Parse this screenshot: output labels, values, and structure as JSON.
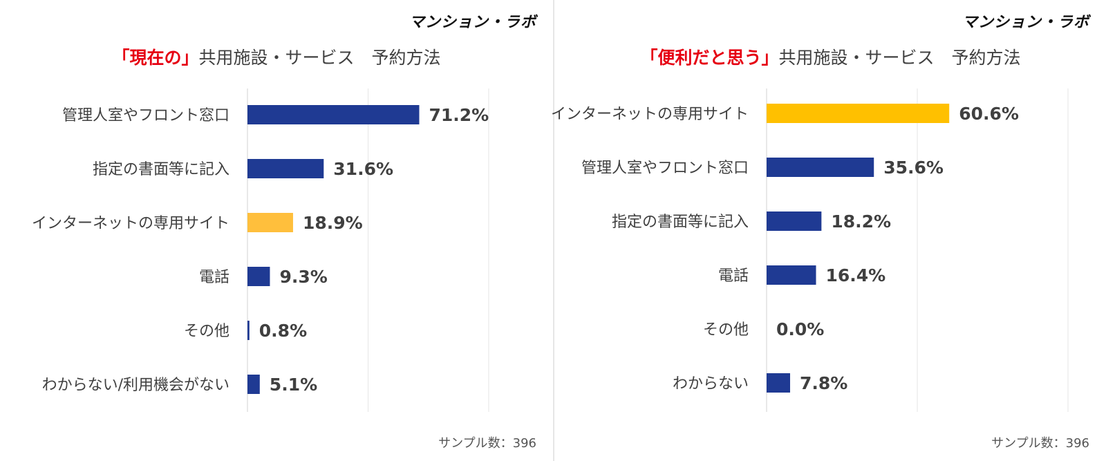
{
  "brand": "マンション・ラボ",
  "chart_data": [
    {
      "type": "bar",
      "orientation": "horizontal",
      "title_highlight": "「現在の」",
      "title_rest": "共用施設・サービス　予約方法",
      "categories": [
        "管理人室やフロント窓口",
        "指定の書面等に記入",
        "インターネットの専用サイト",
        "電話",
        "その他",
        "わからない/利用機会がない"
      ],
      "values": [
        71.2,
        31.6,
        18.9,
        9.3,
        0.8,
        5.1
      ],
      "value_labels": [
        "71.2%",
        "31.6%",
        "18.9%",
        "9.3%",
        "0.8%",
        "5.1%"
      ],
      "unit": "%",
      "colors": [
        "#1f3a93",
        "#1f3a93",
        "#ffbf3c",
        "#1f3a93",
        "#1f3a93",
        "#1f3a93"
      ],
      "xlim": [
        0,
        100
      ],
      "grid": true,
      "sample_text": "サンプル数：396"
    },
    {
      "type": "bar",
      "orientation": "horizontal",
      "title_highlight": "「便利だと思う」",
      "title_rest": "共用施設・サービス　予約方法",
      "categories": [
        "インターネットの専用サイト",
        "管理人室やフロント窓口",
        "指定の書面等に記入",
        "電話",
        "その他",
        "わからない"
      ],
      "values": [
        60.6,
        35.6,
        18.2,
        16.4,
        0.0,
        7.8
      ],
      "value_labels": [
        "60.6%",
        "35.6%",
        "18.2%",
        "16.4%",
        "0.0%",
        "7.8%"
      ],
      "unit": "%",
      "colors": [
        "#ffc000",
        "#1f3a93",
        "#1f3a93",
        "#1f3a93",
        "#1f3a93",
        "#1f3a93"
      ],
      "xlim": [
        0,
        100
      ],
      "grid": true,
      "sample_text": "サンプル数：396"
    }
  ]
}
